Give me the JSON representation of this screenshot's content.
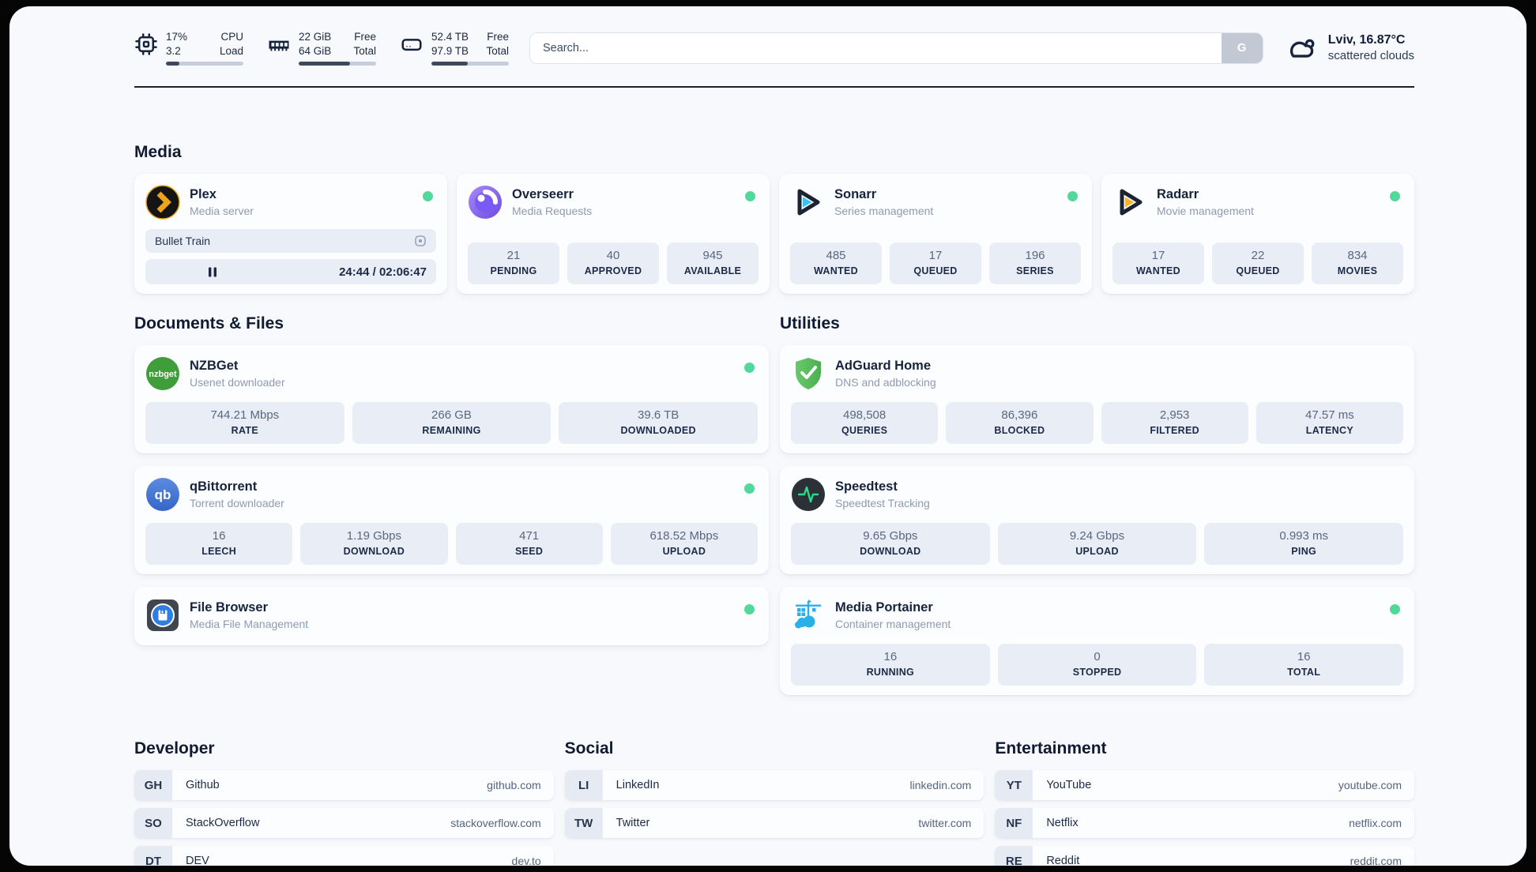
{
  "header": {
    "system_stats": [
      {
        "icon": "cpu-icon",
        "col1": [
          "17%",
          "3.2"
        ],
        "col2": [
          "CPU",
          "Load"
        ],
        "progress_pct": 17
      },
      {
        "icon": "ram-icon",
        "col1": [
          "22 GiB",
          "64 GiB"
        ],
        "col2": [
          "Free",
          "Total"
        ],
        "progress_pct": 66
      },
      {
        "icon": "disk-icon",
        "col1": [
          "52.4 TB",
          "97.9 TB"
        ],
        "col2": [
          "Free",
          "Total"
        ],
        "progress_pct": 47
      }
    ],
    "search": {
      "placeholder": "Search...",
      "button_label": "G"
    },
    "weather": {
      "icon": "cloud-icon",
      "location": "Lviv, 16.87°C",
      "condition": "scattered clouds"
    }
  },
  "sections": {
    "media": {
      "title": "Media",
      "plex": {
        "icon": "plex-icon",
        "name": "Plex",
        "subtitle": "Media server",
        "online": true,
        "player": {
          "now_playing": "Bullet Train",
          "time": "24:44 / 02:06:47",
          "progress_pct": 19.5
        }
      },
      "overseerr": {
        "icon": "overseerr-icon",
        "name": "Overseerr",
        "subtitle": "Media Requests",
        "online": true,
        "stats": [
          {
            "value": "21",
            "label": "PENDING"
          },
          {
            "value": "40",
            "label": "APPROVED"
          },
          {
            "value": "945",
            "label": "AVAILABLE"
          }
        ]
      },
      "sonarr": {
        "icon": "sonarr-icon",
        "name": "Sonarr",
        "subtitle": "Series management",
        "online": true,
        "stats": [
          {
            "value": "485",
            "label": "WANTED"
          },
          {
            "value": "17",
            "label": "QUEUED"
          },
          {
            "value": "196",
            "label": "SERIES"
          }
        ]
      },
      "radarr": {
        "icon": "radarr-icon",
        "name": "Radarr",
        "subtitle": "Movie management",
        "online": true,
        "stats": [
          {
            "value": "17",
            "label": "WANTED"
          },
          {
            "value": "22",
            "label": "QUEUED"
          },
          {
            "value": "834",
            "label": "MOVIES"
          }
        ]
      }
    },
    "documents": {
      "title": "Documents & Files",
      "nzbget": {
        "icon": "nzbget-icon",
        "name": "NZBGet",
        "subtitle": "Usenet downloader",
        "online": true,
        "stats": [
          {
            "value": "744.21 Mbps",
            "label": "RATE"
          },
          {
            "value": "266 GB",
            "label": "REMAINING"
          },
          {
            "value": "39.6 TB",
            "label": "DOWNLOADED"
          }
        ]
      },
      "qbittorrent": {
        "icon": "qbittorrent-icon",
        "name": "qBittorrent",
        "subtitle": "Torrent downloader",
        "online": true,
        "stats": [
          {
            "value": "16",
            "label": "LEECH"
          },
          {
            "value": "1.19 Gbps",
            "label": "DOWNLOAD"
          },
          {
            "value": "471",
            "label": "SEED"
          },
          {
            "value": "618.52 Mbps",
            "label": "UPLOAD"
          }
        ]
      },
      "filebrowser": {
        "icon": "filebrowser-icon",
        "name": "File Browser",
        "subtitle": "Media File Management",
        "online": true
      }
    },
    "utilities": {
      "title": "Utilities",
      "adguard": {
        "icon": "adguard-icon",
        "name": "AdGuard Home",
        "subtitle": "DNS and adblocking",
        "online": false,
        "stats": [
          {
            "value": "498,508",
            "label": "QUERIES"
          },
          {
            "value": "86,396",
            "label": "BLOCKED"
          },
          {
            "value": "2,953",
            "label": "FILTERED"
          },
          {
            "value": "47.57 ms",
            "label": "LATENCY"
          }
        ]
      },
      "speedtest": {
        "icon": "speedtest-icon",
        "name": "Speedtest",
        "subtitle": "Speedtest Tracking",
        "online": false,
        "stats": [
          {
            "value": "9.65 Gbps",
            "label": "DOWNLOAD"
          },
          {
            "value": "9.24 Gbps",
            "label": "UPLOAD"
          },
          {
            "value": "0.993 ms",
            "label": "PING"
          }
        ]
      },
      "portainer": {
        "icon": "portainer-icon",
        "name": "Media Portainer",
        "subtitle": "Container management",
        "online": true,
        "stats": [
          {
            "value": "16",
            "label": "RUNNING"
          },
          {
            "value": "0",
            "label": "STOPPED"
          },
          {
            "value": "16",
            "label": "TOTAL"
          }
        ]
      }
    },
    "bookmarks": {
      "developer": {
        "title": "Developer",
        "links": [
          {
            "abbr": "GH",
            "name": "Github",
            "url": "github.com"
          },
          {
            "abbr": "SO",
            "name": "StackOverflow",
            "url": "stackoverflow.com"
          },
          {
            "abbr": "DT",
            "name": "DEV",
            "url": "dev.to"
          }
        ]
      },
      "social": {
        "title": "Social",
        "links": [
          {
            "abbr": "LI",
            "name": "LinkedIn",
            "url": "linkedin.com"
          },
          {
            "abbr": "TW",
            "name": "Twitter",
            "url": "twitter.com"
          }
        ]
      },
      "entertainment": {
        "title": "Entertainment",
        "links": [
          {
            "abbr": "YT",
            "name": "YouTube",
            "url": "youtube.com"
          },
          {
            "abbr": "NF",
            "name": "Netflix",
            "url": "netflix.com"
          },
          {
            "abbr": "RE",
            "name": "Reddit",
            "url": "reddit.com"
          }
        ]
      }
    }
  },
  "colors": {
    "status_online": "#53d89c",
    "progress_fill": "#3d4a5e",
    "statbox_bg": "#e9edf5"
  }
}
